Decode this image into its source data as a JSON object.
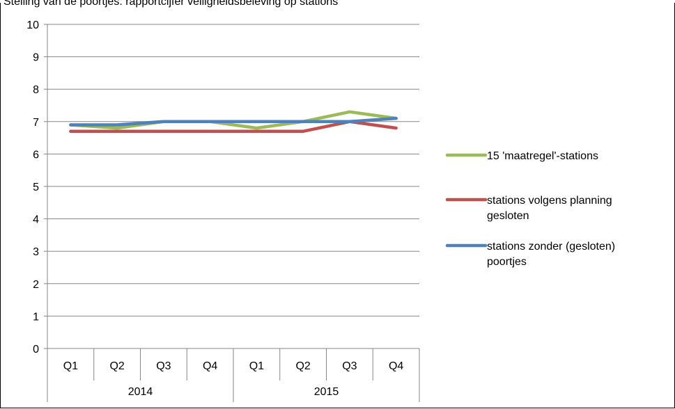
{
  "title": "Stelling van de poortjes: rapportcijfer veiligheidsbeleving op stations",
  "chart_data": {
    "type": "line",
    "title": "Stelling van de poortjes: rapportcijfer veiligheidsbeleving op stations",
    "categories": [
      "Q1",
      "Q2",
      "Q3",
      "Q4",
      "Q1",
      "Q2",
      "Q3",
      "Q4"
    ],
    "groups": [
      {
        "label": "2014",
        "span": 4
      },
      {
        "label": "2015",
        "span": 4
      }
    ],
    "ylim": [
      0,
      10
    ],
    "yticks": [
      "0",
      "1",
      "2",
      "3",
      "4",
      "5",
      "6",
      "7",
      "8",
      "9",
      "10"
    ],
    "grid": true,
    "legend_position": "right",
    "xlabel": "",
    "ylabel": "",
    "series": [
      {
        "name": "15 'maatregel'-stations",
        "color": "#9BBB59",
        "values": [
          6.9,
          6.8,
          7.0,
          7.0,
          6.8,
          7.0,
          7.3,
          7.1
        ]
      },
      {
        "name": "stations volgens planning gesloten",
        "color": "#C0504D",
        "values": [
          6.7,
          6.7,
          6.7,
          6.7,
          6.7,
          6.7,
          7.0,
          6.8
        ]
      },
      {
        "name": "stations zonder (gesloten) poortjes",
        "color": "#4F81BD",
        "values": [
          6.9,
          6.9,
          7.0,
          7.0,
          7.0,
          7.0,
          7.0,
          7.1
        ]
      }
    ]
  }
}
